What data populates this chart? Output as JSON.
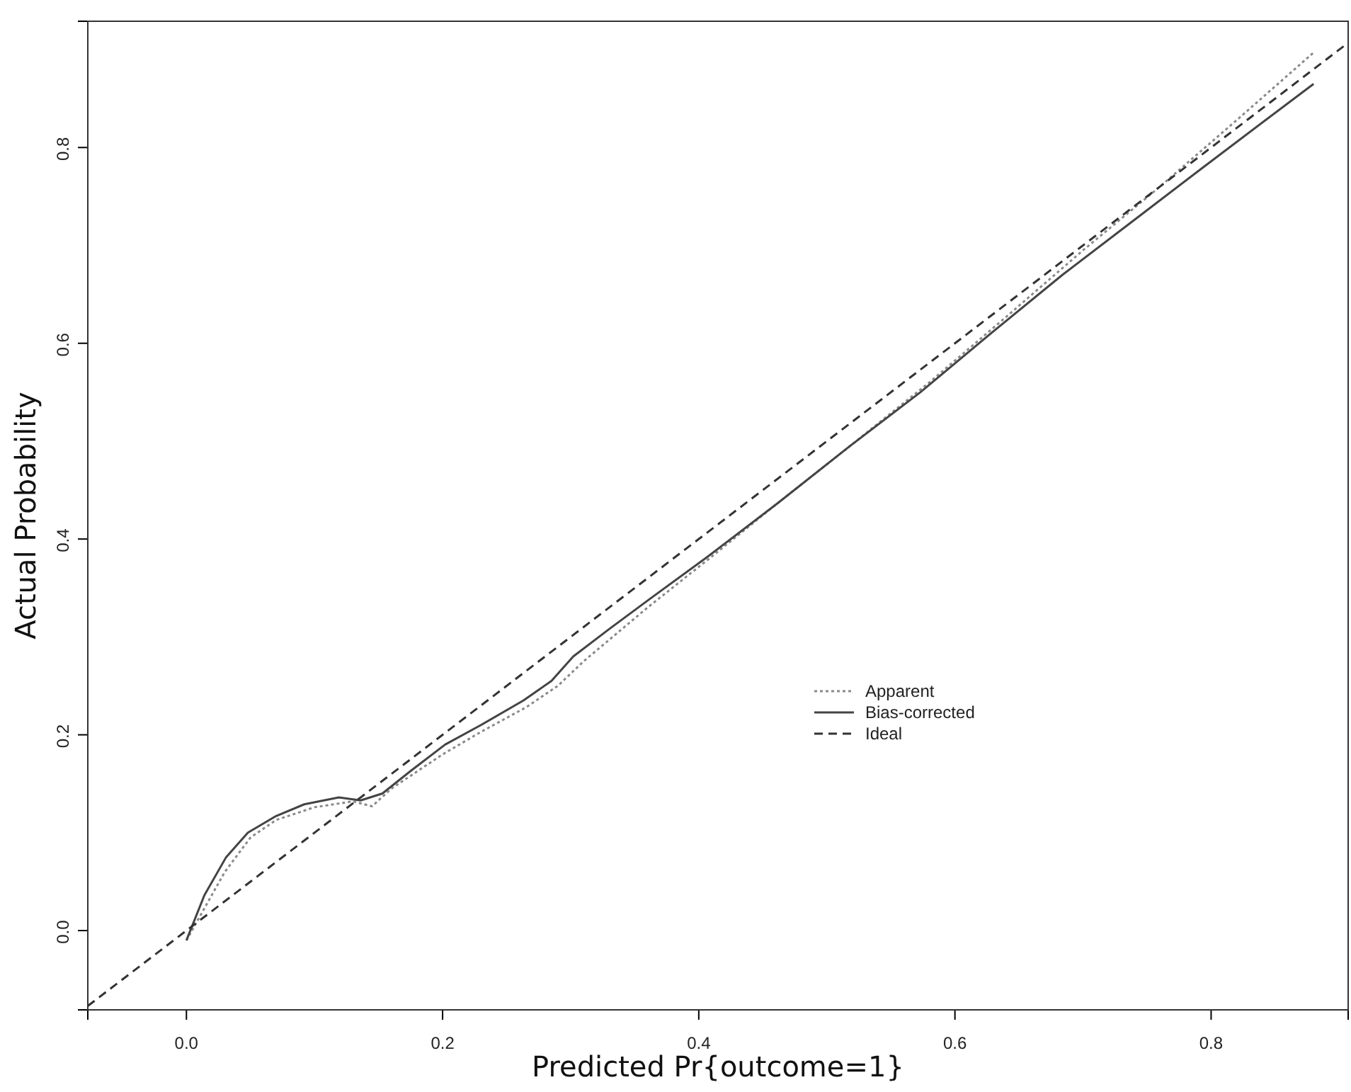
{
  "chart_data": {
    "type": "line",
    "xlabel": "Predicted Pr{outcome=1}",
    "ylabel": "Actual Probability",
    "xlim": [
      -0.077,
      0.907
    ],
    "ylim": [
      -0.081,
      0.929
    ],
    "xticks": [
      {
        "value": 0,
        "label": "0.0"
      },
      0.2,
      0.4,
      0.6,
      0.8
    ],
    "yticks": [
      {
        "value": 0,
        "label": "0.0"
      },
      0.2,
      0.4,
      0.6,
      0.8
    ],
    "legend": "right",
    "grid": false,
    "series": [
      {
        "name": "Apparent",
        "color": "#8a8a8a",
        "line_style": "dotted",
        "x": [
          0,
          0.015,
          0.03,
          0.05,
          0.07,
          0.1,
          0.13,
          0.145,
          0.16,
          0.2,
          0.23,
          0.265,
          0.29,
          0.31,
          0.36,
          0.41,
          0.46,
          0.52,
          0.58,
          0.64,
          0.7,
          0.76,
          0.82,
          0.88
        ],
        "values": [
          -0.01,
          0.025,
          0.06,
          0.095,
          0.113,
          0.126,
          0.132,
          0.127,
          0.145,
          0.18,
          0.203,
          0.228,
          0.25,
          0.275,
          0.33,
          0.382,
          0.435,
          0.497,
          0.56,
          0.627,
          0.695,
          0.76,
          0.828,
          0.897
        ]
      },
      {
        "name": "Bias-corrected",
        "color": "#444444",
        "line_style": "solid",
        "x": [
          0,
          0.014,
          0.031,
          0.048,
          0.07,
          0.092,
          0.119,
          0.136,
          0.153,
          0.175,
          0.202,
          0.23,
          0.263,
          0.285,
          0.302,
          0.33,
          0.363,
          0.407,
          0.462,
          0.518,
          0.573,
          0.628,
          0.684,
          0.739,
          0.794,
          0.88
        ],
        "values": [
          -0.01,
          0.036,
          0.075,
          0.1,
          0.117,
          0.129,
          0.136,
          0.133,
          0.14,
          0.163,
          0.19,
          0.21,
          0.235,
          0.255,
          0.28,
          0.308,
          0.34,
          0.382,
          0.437,
          0.495,
          0.55,
          0.61,
          0.67,
          0.725,
          0.78,
          0.865
        ]
      },
      {
        "name": "Ideal",
        "color": "#333333",
        "line_style": "dashed",
        "x": [
          -0.077,
          0.907
        ],
        "values": [
          -0.077,
          0.907
        ]
      }
    ]
  }
}
